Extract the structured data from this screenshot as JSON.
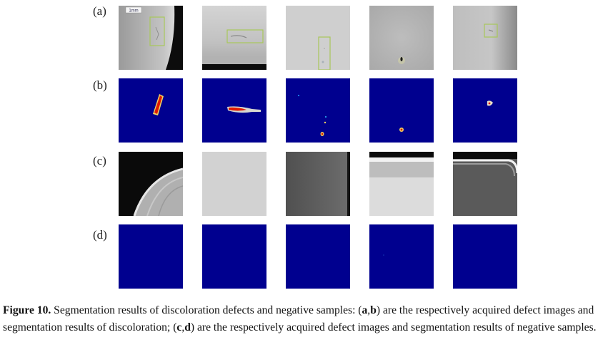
{
  "figure": {
    "row_labels": [
      "(a)",
      "(b)",
      "(c)",
      "(d)"
    ],
    "scale_bar_label": "1mm",
    "colors": {
      "segmentation_background": "#00008f",
      "defect_red": "#e01a00",
      "defect_rim": "#f0d060",
      "detection_box": "#a8c85a"
    }
  },
  "caption": {
    "label": "Figure 10.",
    "text_1": " Segmentation results of discoloration defects and negative samples: (",
    "ref_a": "a",
    "comma_1": ",",
    "ref_b": "b",
    "text_2": ") are the respectively acquired defect images and segmentation results of discoloration; (",
    "ref_c": "c",
    "comma_2": ",",
    "ref_d": "d",
    "text_3": ") are the respectively acquired defect images and segmentation results of negative samples."
  }
}
